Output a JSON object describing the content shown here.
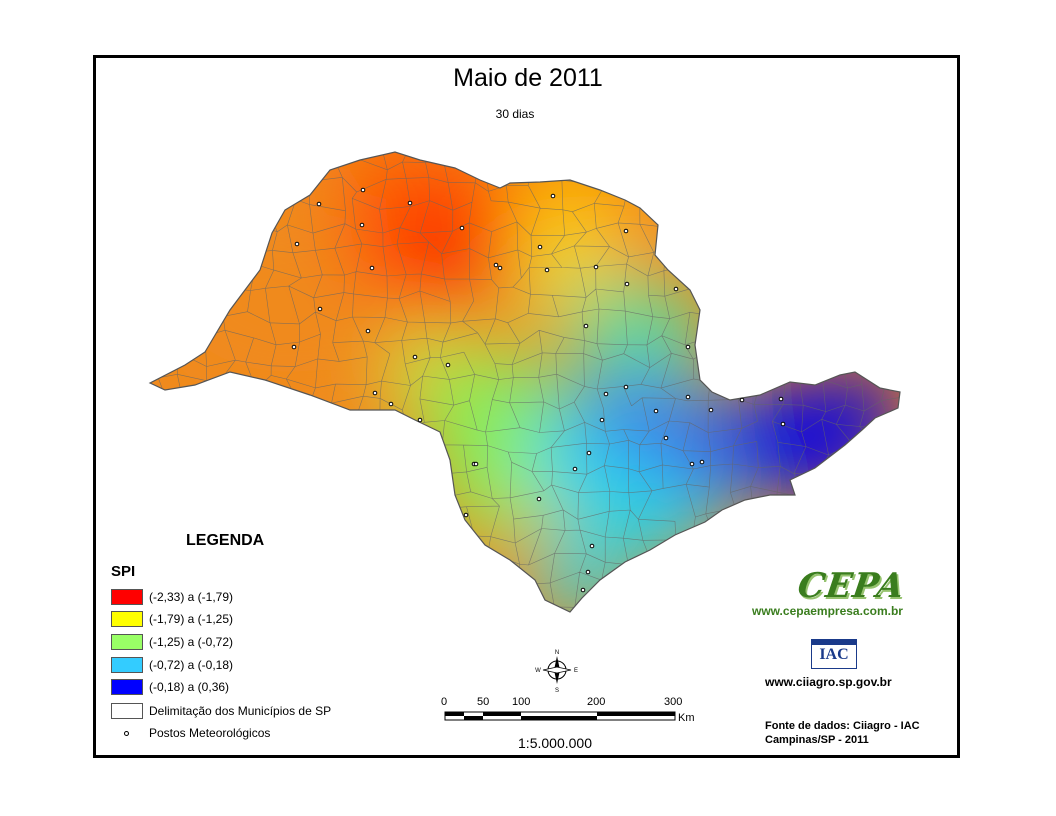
{
  "map": {
    "title": "Maio de 2011",
    "subtitle": "30 dias",
    "region": "SP",
    "colors": {
      "class1": "#ff0000",
      "class2": "#ffff00",
      "class3": "#99ff66",
      "class4": "#33ccff",
      "class5": "#0022ee"
    }
  },
  "legend": {
    "heading": "LEGENDA",
    "variable": "SPI",
    "classes": [
      {
        "label": "(-2,33) a (-1,79)",
        "color": "#ff0000"
      },
      {
        "label": "(-1,79) a (-1,25)",
        "color": "#ffff00"
      },
      {
        "label": "(-1,25) a (-0,72)",
        "color": "#99ff66"
      },
      {
        "label": "(-0,72) a (-0,18)",
        "color": "#33ccff"
      },
      {
        "label": "(-0,18) a (0,36)",
        "color": "#0000ff"
      }
    ],
    "boundaries_label": "Delimitação dos Municípios de SP",
    "stations_label": "Postos Meteorológicos"
  },
  "scale": {
    "ticks": [
      "0",
      "50",
      "100",
      "200",
      "300"
    ],
    "unit": "Km",
    "ratio": "1:5.000.000"
  },
  "compass": {
    "n": "N",
    "s": "S",
    "e": "E",
    "w": "W"
  },
  "credits": {
    "cepa_logo": "CEPA",
    "cepa_url": "www.cepaempresa.com.br",
    "iac_logo": "IAC",
    "ciiagro_url": "www.ciiagro.sp.gov.br",
    "source_line1": "Fonte de dados: Ciiagro - IAC",
    "source_line2": "Campinas/SP - 2011"
  }
}
